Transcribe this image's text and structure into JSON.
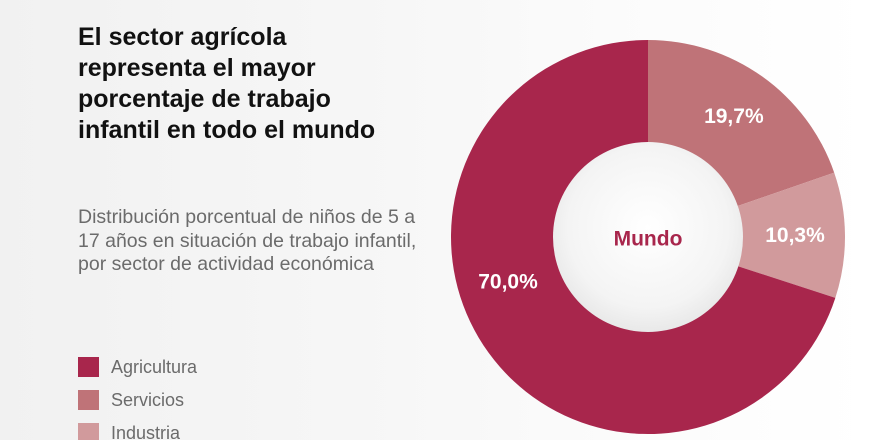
{
  "chart_data": {
    "type": "pie",
    "title": "El sector agrícola representa el mayor porcentaje de trabajo infantil en todo el mundo",
    "subtitle": "Distribución porcentual de niños de 5 a 17 años en situación de trabajo infantil, por sector de actividad económica",
    "center_label": "Mundo",
    "categories": [
      "Agricultura",
      "Servicios",
      "Industria"
    ],
    "values": [
      70.0,
      19.7,
      10.3
    ],
    "value_labels": [
      "70,0%",
      "19,7%",
      "10,3%"
    ],
    "colors": [
      "#a8264c",
      "#bf7378",
      "#d19a9c"
    ],
    "legend_position": "bottom-left",
    "donut": true
  }
}
